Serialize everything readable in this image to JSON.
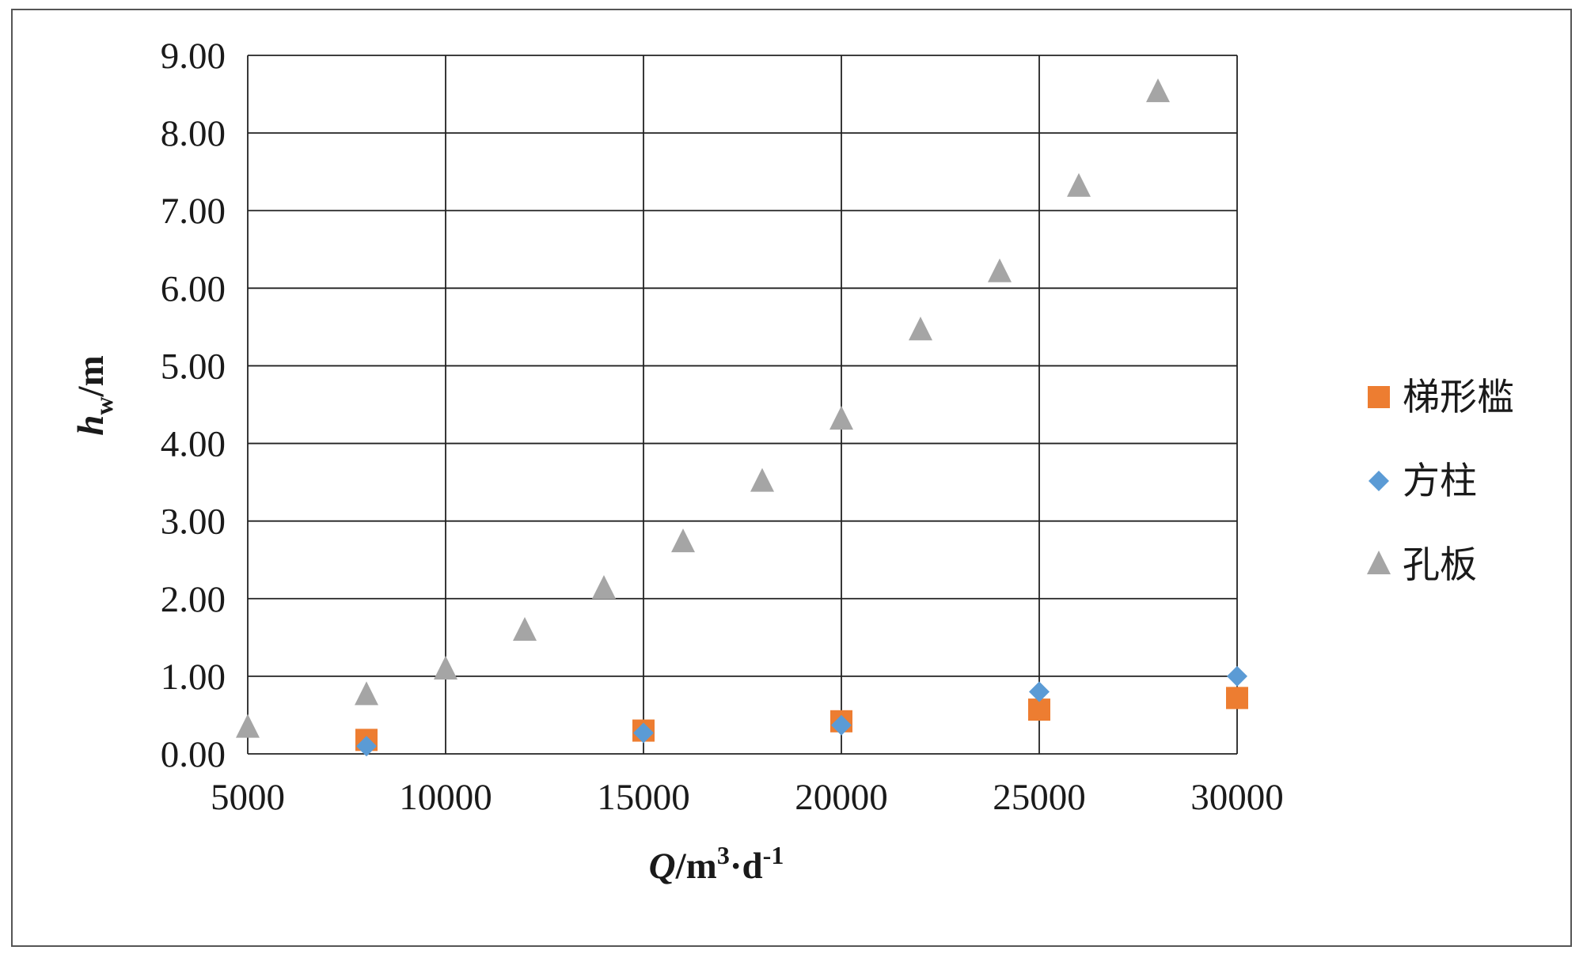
{
  "chart_data": {
    "type": "scatter",
    "title": "",
    "xlabel": {
      "main": "Q",
      "unit": "/m",
      "sup1": "3",
      "mid": "·d",
      "sup2": "-1"
    },
    "ylabel": {
      "main": "h",
      "sub": "w",
      "unit": "/m"
    },
    "xlim": [
      5000,
      30000
    ],
    "ylim": [
      0,
      9
    ],
    "x_ticks": [
      5000,
      10000,
      15000,
      20000,
      25000,
      30000
    ],
    "x_tick_labels": [
      "5000",
      "10000",
      "15000",
      "20000",
      "25000",
      "30000"
    ],
    "y_ticks": [
      0,
      1,
      2,
      3,
      4,
      5,
      6,
      7,
      8,
      9
    ],
    "y_tick_labels": [
      "0.00",
      "1.00",
      "2.00",
      "3.00",
      "4.00",
      "5.00",
      "6.00",
      "7.00",
      "8.00",
      "9.00"
    ],
    "grid": true,
    "legend_position": "right",
    "series": [
      {
        "name": "梯形槛",
        "marker": "square",
        "color": "#ED7D31",
        "points": [
          [
            8000,
            0.18
          ],
          [
            15000,
            0.3
          ],
          [
            20000,
            0.42
          ],
          [
            25000,
            0.57
          ],
          [
            30000,
            0.72
          ]
        ]
      },
      {
        "name": "方柱",
        "marker": "diamond",
        "color": "#5B9BD5",
        "points": [
          [
            8000,
            0.1
          ],
          [
            15000,
            0.27
          ],
          [
            20000,
            0.37
          ],
          [
            25000,
            0.8
          ],
          [
            30000,
            1.0
          ]
        ]
      },
      {
        "name": "孔板",
        "marker": "triangle",
        "color": "#A5A5A5",
        "points": [
          [
            5000,
            0.33
          ],
          [
            8000,
            0.75
          ],
          [
            10000,
            1.08
          ],
          [
            12000,
            1.58
          ],
          [
            14000,
            2.12
          ],
          [
            16000,
            2.72
          ],
          [
            18000,
            3.5
          ],
          [
            20000,
            4.3
          ],
          [
            22000,
            5.45
          ],
          [
            24000,
            6.2
          ],
          [
            26000,
            7.3
          ],
          [
            28000,
            8.52
          ]
        ]
      }
    ]
  }
}
